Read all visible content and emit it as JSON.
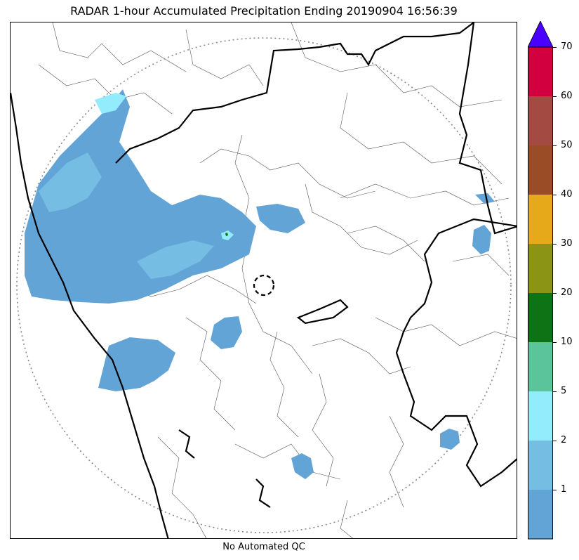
{
  "title": "RADAR 1-hour Accumulated Precipitation Ending 20190904 16:56:39",
  "footer": "No Automated QC",
  "colorbar": {
    "labels": [
      "1",
      "2",
      "5",
      "10",
      "20",
      "30",
      "40",
      "50",
      "60",
      "70"
    ],
    "colors": [
      "#62a4d6",
      "#75bde2",
      "#93ecfc",
      "#5cc49a",
      "#0e7314",
      "#8b9415",
      "#e6a91a",
      "#9a4c27",
      "#a34b43",
      "#d2003f"
    ],
    "extend_color": "#4a00ff"
  },
  "legend_colors": {
    "rain_light": "#62a4d6",
    "rain_mid": "#75bde2",
    "rain_heavy": "#93ecfc",
    "state_border": "#000000",
    "district_border": "#555555",
    "range_ring": "#888888"
  }
}
